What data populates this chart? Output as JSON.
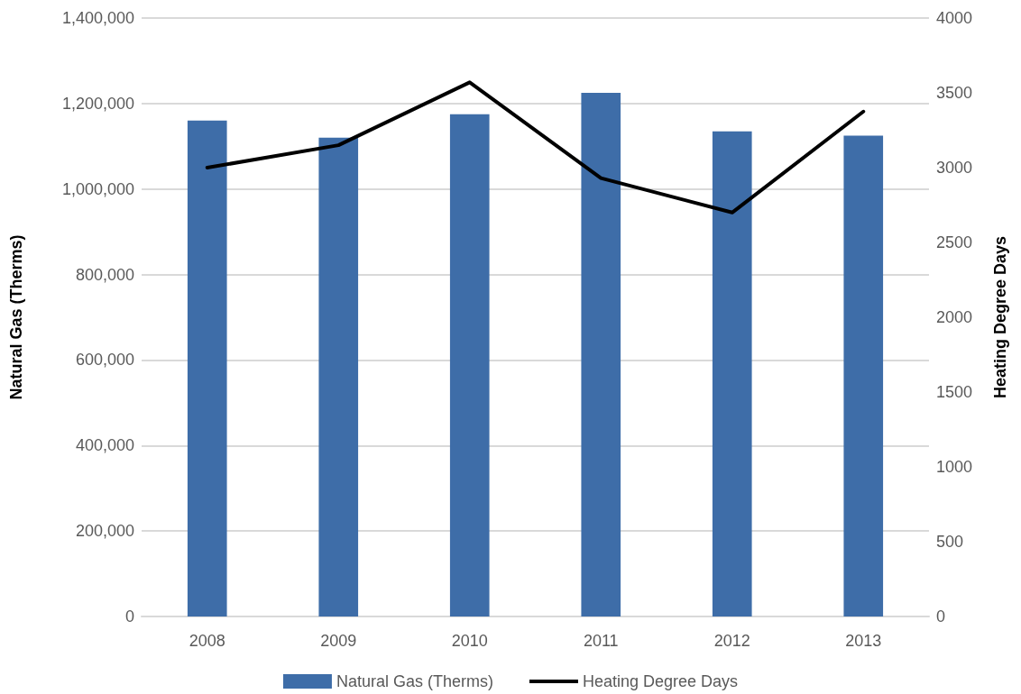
{
  "chart_data": {
    "type": "bar",
    "categories": [
      "2008",
      "2009",
      "2010",
      "2011",
      "2012",
      "2013"
    ],
    "series": [
      {
        "name": "Natural Gas (Therms)",
        "color": "#3e6da8",
        "values": [
          1160000,
          1120000,
          1175000,
          1225000,
          1135000,
          1125000
        ]
      },
      {
        "name": "Heating Degree Days",
        "type": "line",
        "axis": "y2",
        "color": "#000000",
        "values": [
          3000,
          3150,
          3570,
          2930,
          2700,
          3375
        ]
      }
    ],
    "ylabel": "Natural Gas (Therms)",
    "y2label": "Heating Degree Days",
    "ylim": [
      0,
      1400000
    ],
    "yticks": [
      {
        "value": 0,
        "label": "0"
      },
      {
        "value": 200000,
        "label": "200,000"
      },
      {
        "value": 400000,
        "label": "400,000"
      },
      {
        "value": 600000,
        "label": "600,000"
      },
      {
        "value": 800000,
        "label": "800,000"
      },
      {
        "value": 1000000,
        "label": "1,000,000"
      },
      {
        "value": 1200000,
        "label": "1,200,000"
      },
      {
        "value": 1400000,
        "label": "1,400,000"
      }
    ],
    "y2lim": [
      0,
      4000
    ],
    "y2ticks": [
      0,
      500,
      1000,
      1500,
      2000,
      2500,
      3000,
      3500,
      4000
    ],
    "grid": "y",
    "legend": "bottom",
    "marker": "none",
    "line_style": "solid"
  }
}
